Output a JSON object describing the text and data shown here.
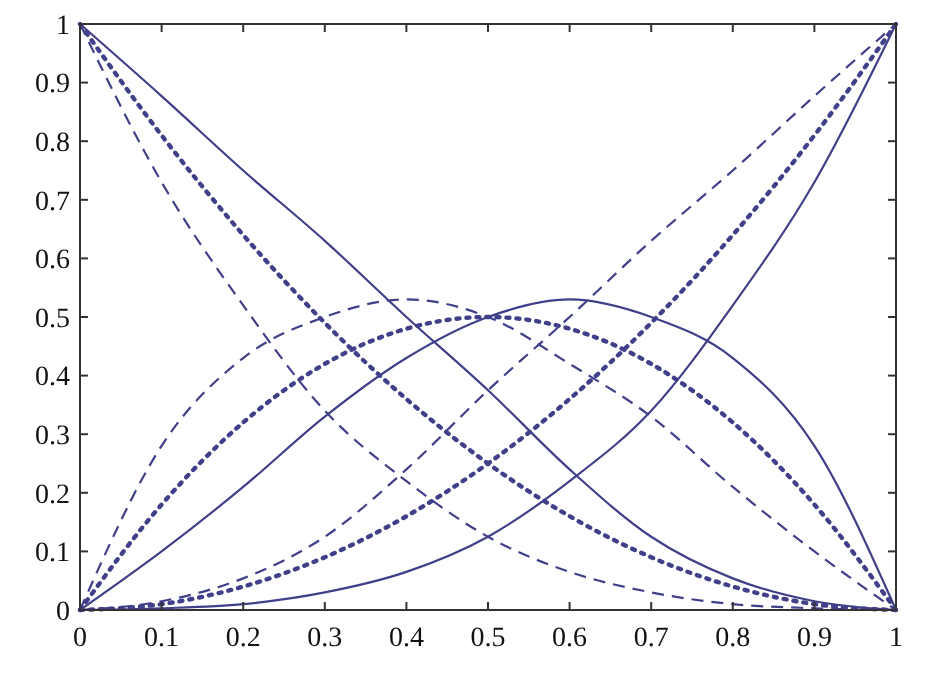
{
  "chart_data": {
    "type": "line",
    "x": [
      0,
      0.1,
      0.2,
      0.3,
      0.4,
      0.5,
      0.6,
      0.7,
      0.8,
      0.9,
      1
    ],
    "xlim": [
      0,
      1
    ],
    "ylim": [
      0,
      1
    ],
    "xticks": [
      0,
      0.1,
      0.2,
      0.3,
      0.4,
      0.5,
      0.6,
      0.7,
      0.8,
      0.9,
      1
    ],
    "yticks": [
      0,
      0.1,
      0.2,
      0.3,
      0.4,
      0.5,
      0.6,
      0.7,
      0.8,
      0.9,
      1
    ],
    "grid": false,
    "marker": "none",
    "series": [
      {
        "color": "#40408a",
        "line_style": "solid",
        "values": [
          1,
          0.877,
          0.75,
          0.63,
          0.5,
          0.375,
          0.24,
          0.125,
          0.054,
          0.015,
          0
        ]
      },
      {
        "color": "#40408a",
        "line_style": "solid",
        "values": [
          0,
          0.1,
          0.21,
          0.33,
          0.43,
          0.5,
          0.53,
          0.5,
          0.43,
          0.28,
          0
        ]
      },
      {
        "color": "#40408a",
        "line_style": "solid",
        "values": [
          0,
          0.003,
          0.01,
          0.03,
          0.065,
          0.125,
          0.22,
          0.34,
          0.52,
          0.73,
          1
        ]
      },
      {
        "color": "#40408a",
        "line_style": "dotted",
        "values": [
          1,
          0.81,
          0.64,
          0.49,
          0.36,
          0.25,
          0.16,
          0.09,
          0.04,
          0.01,
          0
        ]
      },
      {
        "color": "#40408a",
        "line_style": "dotted",
        "values": [
          0,
          0.18,
          0.32,
          0.42,
          0.48,
          0.5,
          0.48,
          0.42,
          0.32,
          0.18,
          0
        ]
      },
      {
        "color": "#40408a",
        "line_style": "dotted",
        "values": [
          0,
          0.01,
          0.04,
          0.09,
          0.16,
          0.25,
          0.36,
          0.49,
          0.64,
          0.81,
          1
        ]
      },
      {
        "color": "#40408a",
        "line_style": "dashed",
        "values": [
          1,
          0.73,
          0.52,
          0.34,
          0.22,
          0.125,
          0.065,
          0.03,
          0.01,
          0.003,
          0
        ]
      },
      {
        "color": "#40408a",
        "line_style": "dashed",
        "values": [
          0,
          0.28,
          0.43,
          0.5,
          0.53,
          0.5,
          0.42,
          0.33,
          0.21,
          0.1,
          0
        ]
      },
      {
        "color": "#40408a",
        "line_style": "dashed",
        "values": [
          0,
          0.015,
          0.054,
          0.125,
          0.24,
          0.375,
          0.5,
          0.63,
          0.75,
          0.877,
          1
        ]
      }
    ]
  }
}
